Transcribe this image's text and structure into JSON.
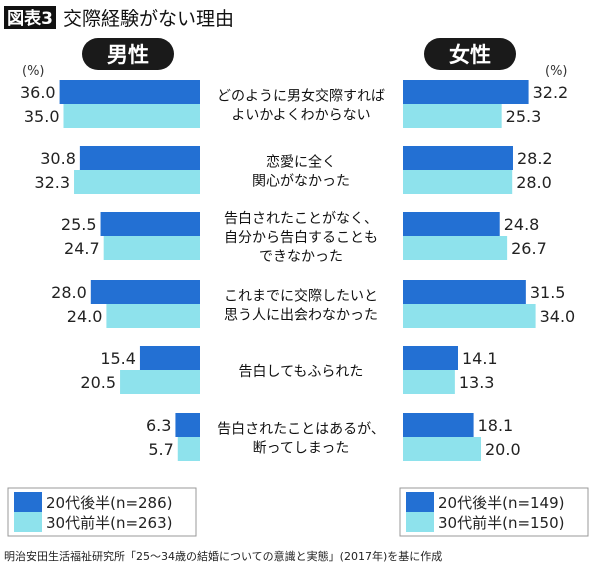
{
  "chart_data": {
    "type": "bar",
    "orientation": "horizontal-butterfly",
    "title_badge": "図表3",
    "title": "交際経験がない理由",
    "unit_label": "(%)",
    "categories": [
      [
        "どのように男女交際すれば",
        "よいかよくわからない"
      ],
      [
        "恋愛に全く",
        "関心がなかった"
      ],
      [
        "告白されたことがなく、",
        "自分から告白することも",
        "できなかった"
      ],
      [
        "これまでに交際したいと",
        "思う人に出会わなかった"
      ],
      [
        "告白してもふられた"
      ],
      [
        "告白されたことはあるが、",
        "断ってしまった"
      ]
    ],
    "panels": [
      {
        "label": "男性",
        "side": "left",
        "series": [
          {
            "name": "20代後半(n=286)",
            "color": "#2370d3",
            "values": [
              36.0,
              30.8,
              25.5,
              28.0,
              15.4,
              6.3
            ]
          },
          {
            "name": "30代前半(n=263)",
            "color": "#8ee2ec",
            "values": [
              35.0,
              32.3,
              24.7,
              24.0,
              20.5,
              5.7
            ]
          }
        ]
      },
      {
        "label": "女性",
        "side": "right",
        "series": [
          {
            "name": "20代後半(n=149)",
            "color": "#2370d3",
            "values": [
              32.2,
              28.2,
              24.8,
              31.5,
              14.1,
              18.1
            ]
          },
          {
            "name": "30代前半(n=150)",
            "color": "#8ee2ec",
            "values": [
              25.3,
              28.0,
              26.7,
              34.0,
              13.3,
              20.0
            ]
          }
        ]
      }
    ],
    "source": "明治安田生活福祉研究所「25〜34歳の結婚についての意識と実態」(2017年)を基に作成"
  }
}
